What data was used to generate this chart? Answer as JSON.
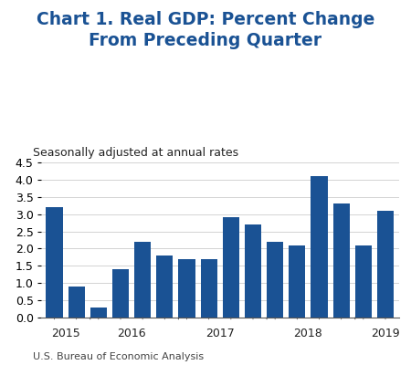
{
  "title": "Chart 1. Real GDP: Percent Change\nFrom Preceding Quarter",
  "subtitle": "Seasonally adjusted at annual rates",
  "footer": "U.S. Bureau of Economic Analysis",
  "bar_color": "#1a5294",
  "background_color": "#ffffff",
  "values": [
    3.2,
    0.9,
    0.3,
    1.4,
    2.2,
    1.8,
    1.7,
    1.7,
    2.9,
    2.7,
    2.2,
    2.1,
    4.1,
    3.3,
    2.1,
    3.1
  ],
  "year_labels": [
    "2015",
    "2016",
    "2017",
    "2018",
    "2019"
  ],
  "ylim": [
    0,
    4.5
  ],
  "yticks": [
    0,
    0.5,
    1.0,
    1.5,
    2.0,
    2.5,
    3.0,
    3.5,
    4.0,
    4.5
  ],
  "title_color": "#1a5294",
  "title_fontsize": 13.5,
  "subtitle_fontsize": 9,
  "footer_fontsize": 8,
  "tick_fontsize": 9
}
